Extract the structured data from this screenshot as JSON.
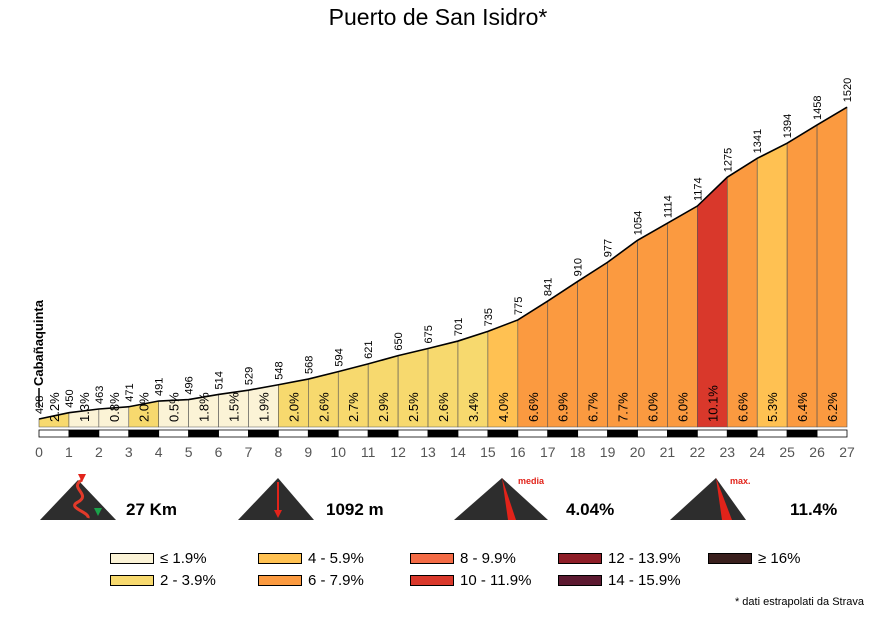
{
  "chart_data": {
    "type": "area",
    "title": "Puerto de San Isidro*",
    "start_label": "Cabañaquinta",
    "x": [
      0,
      1,
      2,
      3,
      4,
      5,
      6,
      7,
      8,
      9,
      10,
      11,
      12,
      13,
      14,
      15,
      16,
      17,
      18,
      19,
      20,
      21,
      22,
      23,
      24,
      25,
      26,
      27
    ],
    "altitudes": [
      428,
      450,
      463,
      471,
      491,
      496,
      514,
      529,
      548,
      568,
      594,
      621,
      650,
      675,
      701,
      735,
      775,
      841,
      910,
      977,
      1054,
      1114,
      1174,
      1275,
      1341,
      1394,
      1458,
      1520
    ],
    "gradients": [
      "2.2%",
      "1.3%",
      "0.8%",
      "2.0%",
      "0.5%",
      "1.8%",
      "1.5%",
      "1.9%",
      "2.0%",
      "2.6%",
      "2.7%",
      "2.9%",
      "2.5%",
      "2.6%",
      "3.4%",
      "4.0%",
      "6.6%",
      "6.9%",
      "6.7%",
      "7.7%",
      "6.0%",
      "6.0%",
      "10.1%",
      "6.6%",
      "5.3%",
      "6.4%",
      "6.2%"
    ],
    "xlim": [
      0,
      27
    ],
    "ylim": [
      400,
      1540
    ]
  },
  "stats": {
    "distance": "27 Km",
    "elevation_gain": "1092 m",
    "avg_label": "media",
    "avg_gradient": "4.04%",
    "max_label": "max.",
    "max_gradient": "11.4%"
  },
  "legend": [
    {
      "label": "≤ 1.9%",
      "color": "#fbf3d6"
    },
    {
      "label": "2 - 3.9%",
      "color": "#f7d96e"
    },
    {
      "label": "4 - 5.9%",
      "color": "#ffc152"
    },
    {
      "label": "6 - 7.9%",
      "color": "#fb9a40"
    },
    {
      "label": "8 - 9.9%",
      "color": "#f36b45"
    },
    {
      "label": "10 - 11.9%",
      "color": "#d9382b"
    },
    {
      "label": "12 - 13.9%",
      "color": "#8e1d27"
    },
    {
      "label": "14 - 15.9%",
      "color": "#5c1930"
    },
    {
      "label": "≥ 16%",
      "color": "#3a1f1d"
    }
  ],
  "footnote": "* dati estrapolati da Strava"
}
